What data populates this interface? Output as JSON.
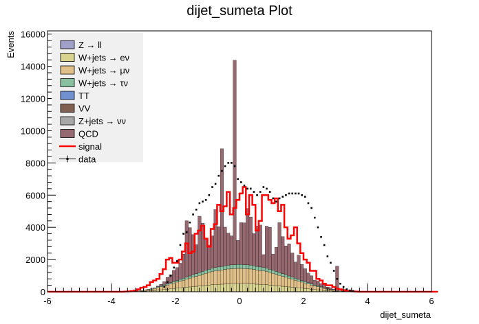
{
  "chart_data": {
    "type": "bar",
    "title": "dijet_sumeta Plot",
    "xlabel": "dijet_sumeta",
    "ylabel": "Events",
    "xlim": [
      -6,
      6
    ],
    "ylim": [
      0,
      16200
    ],
    "xticks": [
      -6,
      -4,
      -2,
      0,
      2,
      4,
      6
    ],
    "yticks": [
      0,
      2000,
      4000,
      6000,
      8000,
      10000,
      12000,
      14000,
      16000
    ],
    "grid": false,
    "legend_placement": "top-left",
    "bin_width": 0.1,
    "x_bin_edges_start": -6,
    "legend": [
      {
        "label": "Z → ll",
        "color": "#a0a0c8",
        "kind": "fill"
      },
      {
        "label": "W+jets → eν",
        "color": "#d8d490",
        "kind": "fill"
      },
      {
        "label": "W+jets → μν",
        "color": "#e0c088",
        "kind": "fill"
      },
      {
        "label": "W+jets → τν",
        "color": "#88c0a0",
        "kind": "fill"
      },
      {
        "label": "TT",
        "color": "#7090d0",
        "kind": "fill"
      },
      {
        "label": "VV",
        "color": "#806050",
        "kind": "fill"
      },
      {
        "label": "Z+jets → νν",
        "color": "#a8a8a8",
        "kind": "fill"
      },
      {
        "label": "QCD",
        "color": "#966870",
        "kind": "fill"
      },
      {
        "label": "signal",
        "color": "#ff0000",
        "kind": "line"
      },
      {
        "label": "data",
        "color": "#000000",
        "kind": "marker"
      }
    ],
    "series": [
      {
        "name": "W+jets → eν",
        "color": "#d8d490",
        "values": [
          0,
          0,
          0,
          0,
          0,
          0,
          0,
          0,
          0,
          0,
          0,
          0,
          0,
          0,
          0,
          0,
          0,
          0,
          0,
          0,
          0,
          0,
          0,
          0,
          0,
          5,
          10,
          15,
          20,
          30,
          40,
          50,
          60,
          80,
          100,
          120,
          140,
          160,
          180,
          200,
          220,
          240,
          260,
          280,
          300,
          320,
          340,
          360,
          380,
          400,
          420,
          440,
          450,
          460,
          470,
          480,
          490,
          500,
          500,
          500,
          500,
          500,
          500,
          490,
          480,
          470,
          460,
          450,
          440,
          420,
          400,
          380,
          360,
          340,
          320,
          300,
          280,
          260,
          240,
          220,
          200,
          180,
          160,
          140,
          120,
          100,
          80,
          60,
          50,
          40,
          30,
          20,
          15,
          10,
          5,
          0,
          0,
          0,
          0,
          0,
          0,
          0,
          0,
          0,
          0,
          0,
          0,
          0,
          0,
          0,
          0,
          0,
          0,
          0,
          0,
          0,
          0,
          0,
          0,
          0
        ]
      },
      {
        "name": "W+jets → μν",
        "color": "#e0c088",
        "values": [
          0,
          0,
          0,
          0,
          0,
          0,
          0,
          0,
          0,
          0,
          0,
          0,
          0,
          0,
          0,
          0,
          0,
          0,
          0,
          0,
          0,
          0,
          0,
          0,
          0,
          5,
          10,
          20,
          30,
          40,
          60,
          80,
          100,
          130,
          160,
          190,
          220,
          260,
          300,
          340,
          380,
          420,
          460,
          500,
          540,
          580,
          620,
          660,
          700,
          740,
          780,
          820,
          840,
          860,
          880,
          900,
          920,
          930,
          940,
          950,
          950,
          940,
          930,
          920,
          900,
          880,
          860,
          840,
          820,
          780,
          740,
          700,
          660,
          620,
          580,
          540,
          500,
          460,
          420,
          380,
          340,
          300,
          260,
          220,
          190,
          160,
          130,
          100,
          80,
          60,
          40,
          30,
          20,
          10,
          5,
          0,
          0,
          0,
          0,
          0,
          0,
          0,
          0,
          0,
          0,
          0,
          0,
          0,
          0,
          0,
          0,
          0,
          0,
          0,
          0,
          0,
          0,
          0,
          0,
          0
        ]
      },
      {
        "name": "W+jets → τν",
        "color": "#88c0a0",
        "values": [
          0,
          0,
          0,
          0,
          0,
          0,
          0,
          0,
          0,
          0,
          0,
          0,
          0,
          0,
          0,
          0,
          0,
          0,
          0,
          0,
          0,
          0,
          0,
          0,
          0,
          2,
          4,
          6,
          10,
          14,
          18,
          24,
          30,
          38,
          46,
          54,
          62,
          70,
          80,
          90,
          100,
          110,
          120,
          130,
          140,
          150,
          160,
          170,
          180,
          190,
          200,
          210,
          215,
          220,
          225,
          230,
          235,
          240,
          240,
          240,
          240,
          240,
          240,
          235,
          230,
          225,
          220,
          215,
          210,
          200,
          190,
          180,
          170,
          160,
          150,
          140,
          130,
          120,
          110,
          100,
          90,
          80,
          70,
          62,
          54,
          46,
          38,
          30,
          24,
          18,
          14,
          10,
          6,
          4,
          2,
          0,
          0,
          0,
          0,
          0,
          0,
          0,
          0,
          0,
          0,
          0,
          0,
          0,
          0,
          0,
          0,
          0,
          0,
          0,
          0,
          0,
          0,
          0,
          0,
          0
        ]
      },
      {
        "name": "QCD",
        "color": "#966870",
        "values": [
          0,
          0,
          0,
          0,
          0,
          0,
          0,
          0,
          0,
          0,
          0,
          0,
          0,
          0,
          0,
          0,
          0,
          0,
          0,
          0,
          0,
          0,
          0,
          0,
          0,
          0,
          0,
          0,
          0,
          0,
          0,
          0,
          0,
          0,
          50,
          100,
          200,
          400,
          500,
          700,
          800,
          1000,
          1500,
          3500,
          3000,
          2500,
          1800,
          3500,
          3000,
          2000,
          1500,
          2000,
          3600,
          2500,
          7300,
          2400,
          2000,
          1800,
          12700,
          1500,
          2600,
          2600,
          3500,
          3000,
          2000,
          2500,
          2600,
          800,
          2600,
          2600,
          1000,
          1500,
          3100,
          2300,
          1800,
          2000,
          1500,
          1000,
          1500,
          1000,
          800,
          600,
          500,
          300,
          300,
          200,
          200,
          100,
          100,
          50,
          1500,
          0,
          0,
          0,
          0,
          0,
          0,
          0,
          0,
          0,
          0,
          0,
          0,
          0,
          0,
          0,
          0,
          0,
          0,
          0,
          0,
          0,
          0,
          0,
          0,
          0,
          0,
          0,
          0,
          0
        ]
      },
      {
        "name": "signal",
        "color": "#ff0000",
        "kind": "line",
        "values": [
          0,
          0,
          0,
          0,
          0,
          0,
          0,
          0,
          0,
          0,
          0,
          0,
          0,
          0,
          0,
          0,
          0,
          0,
          0,
          0,
          0,
          0,
          0,
          0,
          10,
          20,
          40,
          80,
          150,
          250,
          300,
          400,
          600,
          700,
          800,
          1100,
          1400,
          2000,
          2100,
          1800,
          1800,
          2000,
          2500,
          3000,
          2400,
          2500,
          3600,
          3800,
          4100,
          3300,
          2800,
          3900,
          4200,
          5400,
          5000,
          5300,
          6200,
          4800,
          5200,
          5700,
          6100,
          6500,
          4800,
          6000,
          5400,
          3800,
          4400,
          6000,
          6000,
          5700,
          5500,
          5800,
          5000,
          5400,
          4000,
          3300,
          3500,
          4000,
          3000,
          2400,
          2000,
          1800,
          1300,
          1300,
          800,
          700,
          500,
          400,
          400,
          300,
          200,
          150,
          100,
          60,
          40,
          20,
          10,
          0,
          0,
          0,
          0,
          0,
          0,
          0,
          0,
          0,
          0,
          0,
          0,
          0,
          0,
          0,
          0,
          0,
          0,
          0,
          0,
          0,
          0,
          0,
          0,
          0
        ]
      },
      {
        "name": "data",
        "color": "#000000",
        "kind": "marker",
        "values": [
          0,
          0,
          0,
          0,
          0,
          0,
          0,
          0,
          0,
          0,
          0,
          0,
          0,
          0,
          0,
          0,
          0,
          0,
          0,
          0,
          0,
          0,
          0,
          0,
          0,
          0,
          0,
          0,
          0,
          0,
          0,
          0,
          0,
          0,
          0,
          0,
          300,
          600,
          1000,
          1500,
          1900,
          2900,
          3600,
          3700,
          4300,
          4800,
          5100,
          5500,
          5600,
          5700,
          6000,
          6500,
          6700,
          7200,
          7500,
          7800,
          8000,
          8000,
          7800,
          7000,
          6800,
          6600,
          6400,
          6400,
          6200,
          6000,
          6200,
          6500,
          6400,
          6200,
          5800,
          5600,
          5800,
          5900,
          6000,
          6100,
          6100,
          6100,
          6100,
          6000,
          5900,
          5500,
          5200,
          4600,
          4000,
          3400,
          2900,
          2200,
          1800,
          1300,
          800,
          500,
          300,
          150,
          80,
          40,
          0,
          0,
          0,
          0,
          0,
          0,
          0,
          0,
          0,
          0,
          0,
          0,
          0,
          0,
          0,
          0,
          0,
          0,
          0,
          0,
          0,
          0,
          0,
          0
        ]
      }
    ]
  }
}
